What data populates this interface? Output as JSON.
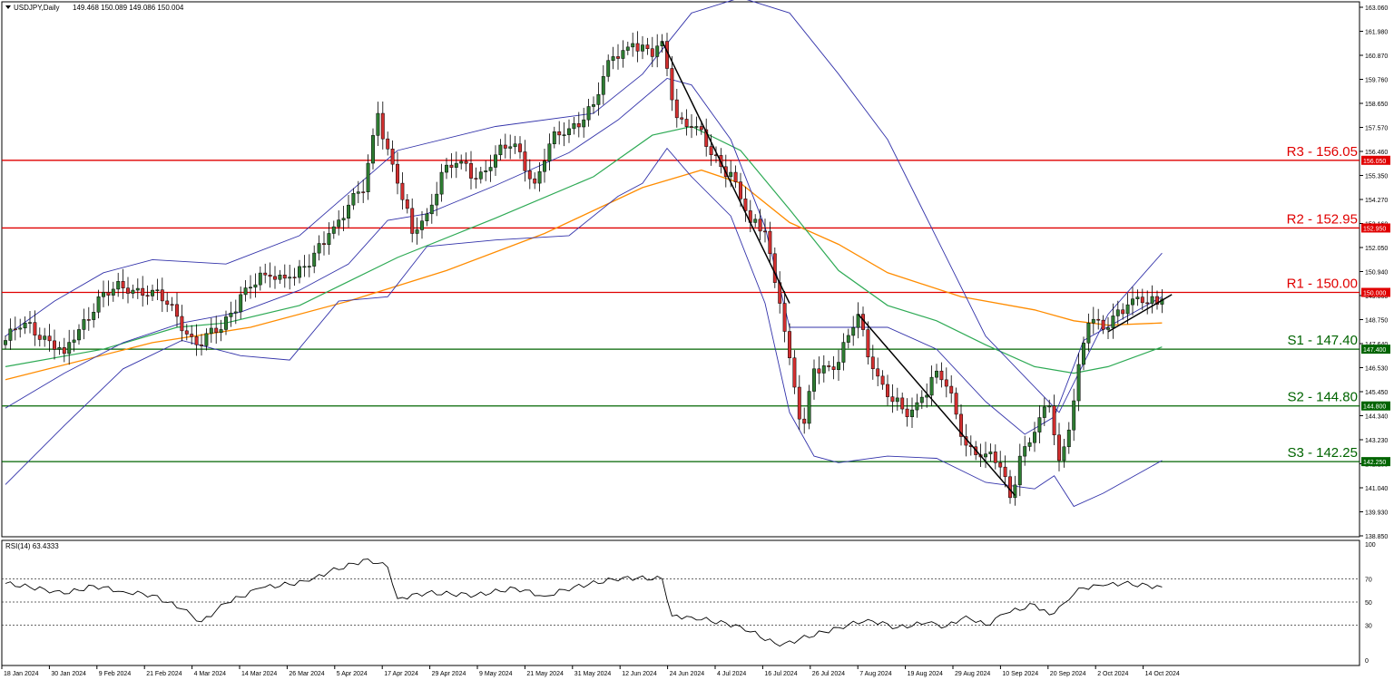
{
  "header": {
    "symbol": "USDJPY,Daily",
    "ohlc": "149.468 150.089 149.086 150.004"
  },
  "rsi_header": "RSI(14) 63.4333",
  "colors": {
    "bull": "#2e7d32",
    "bear": "#d32f2f",
    "resistance": "#e00000",
    "support": "#006400",
    "ma_orange": "#ff8c00",
    "ma_green": "#2eaa55",
    "bollinger": "#3333aa",
    "trend": "#000000",
    "rsi_line": "#000000"
  },
  "chart_data": {
    "type": "candlestick",
    "y_ticks": [
      "163.060",
      "161.980",
      "160.870",
      "159.760",
      "158.650",
      "157.570",
      "156.460",
      "155.350",
      "154.270",
      "153.160",
      "152.050",
      "150.940",
      "149.860",
      "148.750",
      "147.640",
      "146.530",
      "145.450",
      "144.340",
      "143.230",
      "142.150",
      "141.040",
      "139.930",
      "138.850"
    ],
    "ylim": [
      138.85,
      163.06
    ],
    "x_labels": [
      "18 Jan 2024",
      "30 Jan 2024",
      "9 Feb 2024",
      "21 Feb 2024",
      "4 Mar 2024",
      "14 Mar 2024",
      "26 Mar 2024",
      "5 Apr 2024",
      "17 Apr 2024",
      "29 Apr 2024",
      "9 May 2024",
      "21 May 2024",
      "31 May 2024",
      "12 Jun 2024",
      "24 Jun 2024",
      "4 Jul 2024",
      "16 Jul 2024",
      "26 Jul 2024",
      "7 Aug 2024",
      "19 Aug 2024",
      "29 Aug 2024",
      "10 Sep 2024",
      "20 Sep 2024",
      "2 Oct 2024",
      "14 Oct 2024"
    ],
    "levels": [
      {
        "label": "R3 - 156.05",
        "price": 156.05,
        "tag": "156.050",
        "kind": "resistance"
      },
      {
        "label": "R2 - 152.95",
        "price": 152.95,
        "tag": "152.950",
        "kind": "resistance"
      },
      {
        "label": "R1 - 150.00",
        "price": 150.0,
        "tag": "150.000",
        "kind": "resistance"
      },
      {
        "label": "S1 - 147.40",
        "price": 147.4,
        "tag": "147.400",
        "kind": "support"
      },
      {
        "label": "S2 - 144.80",
        "price": 144.8,
        "tag": "144.800",
        "kind": "support"
      },
      {
        "label": "S3 - 142.25",
        "price": 142.25,
        "tag": "142.250",
        "kind": "support"
      }
    ],
    "anchors": [
      [
        0,
        147.8
      ],
      [
        4,
        148.6
      ],
      [
        8,
        148.0
      ],
      [
        12,
        147.2
      ],
      [
        15,
        148.3
      ],
      [
        19,
        149.8
      ],
      [
        24,
        150.2
      ],
      [
        30,
        150.1
      ],
      [
        35,
        148.9
      ],
      [
        39,
        147.6
      ],
      [
        44,
        148.3
      ],
      [
        48,
        149.9
      ],
      [
        53,
        150.8
      ],
      [
        58,
        150.7
      ],
      [
        62,
        151.2
      ],
      [
        66,
        152.7
      ],
      [
        70,
        154.0
      ],
      [
        73,
        154.6
      ],
      [
        76,
        158.2
      ],
      [
        80,
        155.0
      ],
      [
        83,
        152.7
      ],
      [
        86,
        153.6
      ],
      [
        89,
        155.5
      ],
      [
        93,
        156.0
      ],
      [
        96,
        155.2
      ],
      [
        100,
        156.3
      ],
      [
        104,
        156.8
      ],
      [
        108,
        155.0
      ],
      [
        111,
        156.8
      ],
      [
        115,
        157.5
      ],
      [
        120,
        158.6
      ],
      [
        124,
        160.8
      ],
      [
        128,
        161.4
      ],
      [
        132,
        160.8
      ],
      [
        134,
        161.5
      ],
      [
        137,
        158.0
      ],
      [
        141,
        157.6
      ],
      [
        144,
        156.3
      ],
      [
        148,
        155.5
      ],
      [
        152,
        153.2
      ],
      [
        155,
        152.8
      ],
      [
        158,
        149.5
      ],
      [
        160,
        147.0
      ],
      [
        162,
        144.2
      ],
      [
        163,
        144.0
      ],
      [
        165,
        146.5
      ],
      [
        170,
        146.8
      ],
      [
        174,
        149.0
      ],
      [
        177,
        146.5
      ],
      [
        181,
        145.0
      ],
      [
        184,
        144.3
      ],
      [
        187,
        145.2
      ],
      [
        190,
        146.4
      ],
      [
        192,
        145.7
      ],
      [
        196,
        143.0
      ],
      [
        200,
        142.6
      ],
      [
        203,
        142.0
      ],
      [
        205,
        140.6
      ],
      [
        207,
        142.5
      ],
      [
        210,
        143.6
      ],
      [
        213,
        144.8
      ],
      [
        215,
        142.3
      ],
      [
        217,
        143.7
      ],
      [
        219,
        146.7
      ],
      [
        221,
        148.6
      ],
      [
        224,
        148.3
      ],
      [
        227,
        149.2
      ],
      [
        230,
        149.7
      ],
      [
        233,
        149.5
      ],
      [
        236,
        149.7
      ]
    ],
    "series": [
      {
        "name": "",
        "style": "ma-orange",
        "points": [
          [
            0,
            146.0
          ],
          [
            30,
            147.7
          ],
          [
            50,
            148.4
          ],
          [
            70,
            149.6
          ],
          [
            90,
            151.0
          ],
          [
            110,
            152.7
          ],
          [
            130,
            154.8
          ],
          [
            142,
            155.6
          ],
          [
            150,
            155.0
          ],
          [
            160,
            153.2
          ],
          [
            170,
            152.2
          ],
          [
            180,
            150.9
          ],
          [
            195,
            149.8
          ],
          [
            210,
            149.2
          ],
          [
            218,
            148.7
          ],
          [
            225,
            148.5
          ],
          [
            236,
            148.6
          ]
        ]
      },
      {
        "name": "",
        "style": "ma-green",
        "points": [
          [
            0,
            146.6
          ],
          [
            20,
            147.4
          ],
          [
            35,
            148.4
          ],
          [
            45,
            148.6
          ],
          [
            60,
            149.4
          ],
          [
            80,
            151.6
          ],
          [
            100,
            153.4
          ],
          [
            120,
            155.3
          ],
          [
            132,
            157.2
          ],
          [
            140,
            157.6
          ],
          [
            150,
            156.5
          ],
          [
            160,
            153.8
          ],
          [
            170,
            151.0
          ],
          [
            180,
            149.4
          ],
          [
            190,
            148.7
          ],
          [
            200,
            147.6
          ],
          [
            210,
            146.6
          ],
          [
            218,
            146.3
          ],
          [
            225,
            146.6
          ],
          [
            236,
            147.5
          ]
        ]
      },
      {
        "name": "",
        "style": "bb",
        "points": [
          [
            0,
            148.0
          ],
          [
            10,
            149.6
          ],
          [
            20,
            150.9
          ],
          [
            30,
            151.5
          ],
          [
            45,
            151.3
          ],
          [
            60,
            152.6
          ],
          [
            80,
            156.5
          ],
          [
            100,
            157.6
          ],
          [
            120,
            158.2
          ],
          [
            130,
            160.0
          ],
          [
            140,
            162.8
          ],
          [
            150,
            163.5
          ],
          [
            160,
            162.8
          ],
          [
            170,
            160.0
          ],
          [
            180,
            157.0
          ],
          [
            190,
            152.5
          ],
          [
            200,
            148.0
          ],
          [
            215,
            144.5
          ],
          [
            225,
            149.0
          ],
          [
            236,
            151.8
          ]
        ]
      },
      {
        "name": "",
        "style": "bb",
        "points": [
          [
            0,
            144.7
          ],
          [
            12,
            146.3
          ],
          [
            24,
            147.7
          ],
          [
            36,
            148.6
          ],
          [
            48,
            149.1
          ],
          [
            60,
            150.1
          ],
          [
            70,
            151.3
          ],
          [
            78,
            153.3
          ],
          [
            86,
            153.6
          ],
          [
            100,
            154.9
          ],
          [
            115,
            156.4
          ],
          [
            125,
            157.9
          ],
          [
            135,
            159.8
          ],
          [
            140,
            159.5
          ],
          [
            148,
            157.0
          ],
          [
            155,
            153.0
          ],
          [
            160,
            148.4
          ],
          [
            170,
            148.4
          ],
          [
            180,
            148.4
          ],
          [
            190,
            147.4
          ],
          [
            200,
            145.0
          ],
          [
            208,
            143.5
          ],
          [
            214,
            144.3
          ],
          [
            220,
            147.8
          ],
          [
            236,
            149.8
          ]
        ]
      },
      {
        "name": "",
        "style": "bb",
        "points": [
          [
            0,
            141.2
          ],
          [
            12,
            143.9
          ],
          [
            24,
            146.5
          ],
          [
            36,
            147.8
          ],
          [
            48,
            147.1
          ],
          [
            58,
            146.9
          ],
          [
            68,
            149.6
          ],
          [
            78,
            149.8
          ],
          [
            86,
            152.1
          ],
          [
            100,
            152.4
          ],
          [
            115,
            152.6
          ],
          [
            125,
            154.4
          ],
          [
            130,
            155.0
          ],
          [
            135,
            156.6
          ],
          [
            140,
            155.3
          ],
          [
            148,
            153.5
          ],
          [
            155,
            149.5
          ],
          [
            160,
            144.5
          ],
          [
            165,
            142.5
          ],
          [
            170,
            142.2
          ],
          [
            180,
            142.5
          ],
          [
            190,
            142.4
          ],
          [
            200,
            141.3
          ],
          [
            210,
            141.0
          ],
          [
            214,
            141.6
          ],
          [
            218,
            140.2
          ],
          [
            224,
            140.8
          ],
          [
            236,
            142.3
          ]
        ]
      }
    ],
    "trendlines": [
      {
        "points": [
          [
            134,
            161.5
          ],
          [
            160,
            149.5
          ]
        ]
      },
      {
        "points": [
          [
            174,
            149.0
          ],
          [
            206,
            140.7
          ]
        ]
      },
      {
        "points": [
          [
            225,
            148.2
          ],
          [
            238,
            149.9
          ]
        ]
      }
    ],
    "rsi": {
      "ylim": [
        0,
        100
      ],
      "ticks": [
        "100",
        "70",
        "50",
        "30",
        "0"
      ],
      "levels": [
        70,
        50,
        30
      ],
      "anchors": [
        [
          0,
          66
        ],
        [
          8,
          61
        ],
        [
          12,
          57
        ],
        [
          18,
          64
        ],
        [
          24,
          59
        ],
        [
          30,
          56
        ],
        [
          36,
          44
        ],
        [
          40,
          33
        ],
        [
          45,
          49
        ],
        [
          52,
          62
        ],
        [
          62,
          68
        ],
        [
          66,
          76
        ],
        [
          74,
          87
        ],
        [
          78,
          80
        ],
        [
          80,
          53
        ],
        [
          86,
          58
        ],
        [
          96,
          56
        ],
        [
          104,
          62
        ],
        [
          110,
          55
        ],
        [
          116,
          63
        ],
        [
          126,
          71
        ],
        [
          134,
          70
        ],
        [
          136,
          38
        ],
        [
          140,
          37
        ],
        [
          150,
          29
        ],
        [
          158,
          12
        ],
        [
          162,
          18
        ],
        [
          170,
          28
        ],
        [
          176,
          35
        ],
        [
          182,
          28
        ],
        [
          188,
          32
        ],
        [
          192,
          29
        ],
        [
          196,
          38
        ],
        [
          200,
          30
        ],
        [
          204,
          40
        ],
        [
          210,
          48
        ],
        [
          213,
          39
        ],
        [
          216,
          49
        ],
        [
          219,
          62
        ],
        [
          224,
          64
        ],
        [
          228,
          66
        ],
        [
          236,
          63
        ]
      ]
    }
  }
}
